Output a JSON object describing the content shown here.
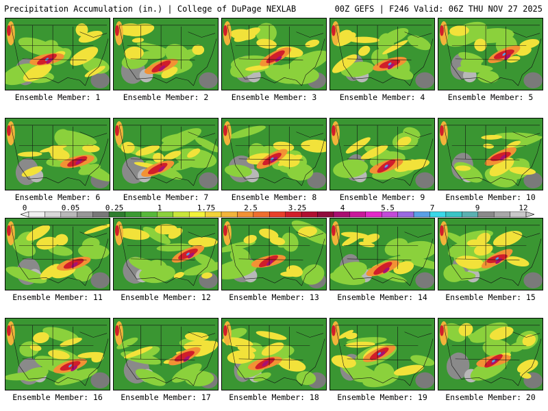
{
  "header": {
    "left_title": "Precipitation Accumulation (in.) | College of DuPage NEXLAB",
    "right_title": "00Z GEFS | F246 Valid: 06Z THU NOV 27 2025"
  },
  "panels": [
    {
      "label": "Ensemble Member: 1"
    },
    {
      "label": "Ensemble Member: 2"
    },
    {
      "label": "Ensemble Member: 3"
    },
    {
      "label": "Ensemble Member: 4"
    },
    {
      "label": "Ensemble Member: 5"
    },
    {
      "label": "Ensemble Member: 6"
    },
    {
      "label": "Ensemble Member: 7"
    },
    {
      "label": "Ensemble Member: 8"
    },
    {
      "label": "Ensemble Member: 9"
    },
    {
      "label": "Ensemble Member: 10"
    },
    {
      "label": "Ensemble Member: 11"
    },
    {
      "label": "Ensemble Member: 12"
    },
    {
      "label": "Ensemble Member: 13"
    },
    {
      "label": "Ensemble Member: 14"
    },
    {
      "label": "Ensemble Member: 15"
    },
    {
      "label": "Ensemble Member: 16"
    },
    {
      "label": "Ensemble Member: 17"
    },
    {
      "label": "Ensemble Member: 18"
    },
    {
      "label": "Ensemble Member: 19"
    },
    {
      "label": "Ensemble Member: 20"
    }
  ],
  "colorbar": {
    "tick_labels": [
      "0",
      "0.05",
      "0.25",
      "1",
      "1.75",
      "2.5",
      "3.25",
      "4",
      "5.5",
      "7",
      "9",
      "12"
    ],
    "colors": [
      "#f0f0f0",
      "#d8d8d8",
      "#b8b8b8",
      "#989898",
      "#787878",
      "#2e7d2e",
      "#3a9a32",
      "#57b83a",
      "#8bd13c",
      "#c8e63a",
      "#f2f23a",
      "#f2d23a",
      "#f2b43a",
      "#f29234",
      "#ef6e2e",
      "#e8402a",
      "#d01e2a",
      "#b01030",
      "#900c3c",
      "#a81070",
      "#c81a9a",
      "#e22ac8",
      "#c24ad8",
      "#9a6ae0",
      "#5aa0e6",
      "#3ad8e8",
      "#3ac4c4",
      "#5ab0b0",
      "#8a8a8a",
      "#a8a8a8",
      "#c8c8c8"
    ]
  }
}
